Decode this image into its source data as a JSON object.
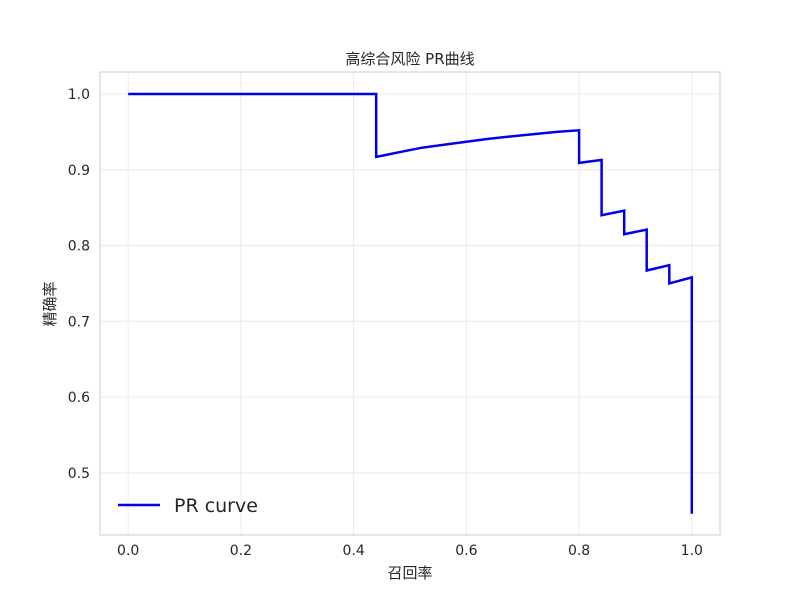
{
  "chart_data": {
    "type": "line",
    "title": "高综合风险 PR曲线",
    "xlabel": "召回率",
    "ylabel": "精确率",
    "xlim": [
      -0.05,
      1.05
    ],
    "ylim": [
      0.418,
      1.029
    ],
    "x_ticks": [
      {
        "value": 0.0,
        "label": "0.0"
      },
      {
        "value": 0.2,
        "label": "0.2"
      },
      {
        "value": 0.4,
        "label": "0.4"
      },
      {
        "value": 0.6,
        "label": "0.6"
      },
      {
        "value": 0.8,
        "label": "0.8"
      },
      {
        "value": 1.0,
        "label": "1.0"
      }
    ],
    "y_ticks": [
      {
        "value": 0.5,
        "label": "0.5"
      },
      {
        "value": 0.6,
        "label": "0.6"
      },
      {
        "value": 0.7,
        "label": "0.7"
      },
      {
        "value": 0.8,
        "label": "0.8"
      },
      {
        "value": 0.9,
        "label": "0.9"
      },
      {
        "value": 1.0,
        "label": "1.0"
      }
    ],
    "grid": true,
    "legend": {
      "position": "lower-left",
      "entries": [
        "PR curve"
      ]
    },
    "series": [
      {
        "name": "PR curve",
        "color": "#0000ee",
        "x": [
          0.0,
          0.44,
          0.44,
          0.48,
          0.52,
          0.56,
          0.6,
          0.64,
          0.68,
          0.72,
          0.76,
          0.8,
          0.8,
          0.84,
          0.84,
          0.88,
          0.88,
          0.92,
          0.92,
          0.96,
          0.96,
          1.0,
          1.0
        ],
        "y": [
          1.0,
          1.0,
          0.917,
          0.923,
          0.929,
          0.933,
          0.937,
          0.941,
          0.944,
          0.947,
          0.95,
          0.952,
          0.909,
          0.913,
          0.84,
          0.846,
          0.815,
          0.821,
          0.767,
          0.774,
          0.75,
          0.758,
          0.446
        ]
      }
    ]
  }
}
